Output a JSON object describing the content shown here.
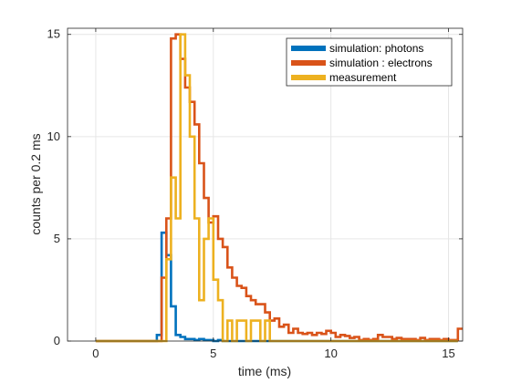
{
  "chart_data": {
    "type": "line",
    "xlabel": "time (ms)",
    "ylabel": "counts per 0.2 ms",
    "xlim": [
      -1.2,
      15.6
    ],
    "ylim": [
      0,
      15.3
    ],
    "xticks": [
      0,
      5,
      10,
      15
    ],
    "yticks": [
      0,
      5,
      10,
      15
    ],
    "grid": true,
    "legend_position": "top-right",
    "bin_width_ms": 0.2,
    "series": [
      {
        "name": "simulation: photons",
        "color": "#0072BD",
        "x": [
          0.0,
          0.2,
          0.4,
          0.6,
          0.8,
          1.0,
          1.2,
          1.4,
          1.6,
          1.8,
          2.0,
          2.2,
          2.4,
          2.6,
          2.8,
          3.0,
          3.2,
          3.4,
          3.6,
          3.8,
          4.0,
          4.2,
          4.4,
          4.6,
          4.8,
          5.0,
          5.2,
          5.4,
          5.6,
          15.2
        ],
        "y": [
          0,
          0,
          0,
          0,
          0,
          0,
          0,
          0,
          0,
          0,
          0,
          0,
          0,
          0.3,
          5.3,
          4.2,
          1.7,
          0.3,
          0.2,
          0.1,
          0.1,
          0.05,
          0.1,
          0.05,
          0.05,
          0,
          0.05,
          0,
          0,
          0
        ]
      },
      {
        "name": "simulation : electrons",
        "color": "#D95319",
        "x": [
          0.0,
          2.4,
          2.6,
          2.8,
          3.0,
          3.2,
          3.4,
          3.6,
          3.8,
          4.0,
          4.2,
          4.4,
          4.6,
          4.8,
          5.0,
          5.2,
          5.4,
          5.6,
          5.8,
          6.0,
          6.2,
          6.4,
          6.6,
          6.8,
          7.0,
          7.2,
          7.4,
          7.6,
          7.8,
          8.0,
          8.2,
          8.4,
          8.6,
          8.8,
          9.0,
          9.2,
          9.4,
          9.6,
          9.8,
          10.0,
          10.2,
          10.4,
          10.6,
          10.8,
          11.0,
          11.2,
          11.4,
          11.6,
          11.8,
          12.0,
          12.2,
          12.4,
          12.6,
          12.8,
          13.0,
          13.2,
          13.4,
          13.6,
          13.8,
          14.0,
          14.2,
          14.4,
          14.6,
          14.8,
          15.0,
          15.2,
          15.4
        ],
        "y": [
          0,
          0,
          0,
          3.1,
          6.0,
          14.8,
          15.0,
          13.8,
          12.4,
          11.7,
          10.6,
          8.7,
          7.0,
          5.8,
          6.1,
          5.0,
          4.6,
          3.6,
          3.1,
          2.7,
          2.6,
          2.2,
          2.0,
          1.8,
          1.8,
          1.4,
          1.0,
          1.1,
          0.7,
          0.8,
          0.4,
          0.6,
          0.4,
          0.35,
          0.4,
          0.3,
          0.4,
          0.35,
          0.5,
          0.4,
          0.2,
          0.3,
          0.25,
          0.15,
          0.2,
          0.05,
          0.1,
          0.05,
          0.1,
          0.3,
          0.2,
          0.2,
          0.1,
          0.15,
          0.1,
          0.1,
          0.1,
          0.05,
          0.15,
          0.05,
          0.1,
          0.1,
          0.05,
          0.1,
          0.05,
          0.05,
          0.6
        ]
      },
      {
        "name": "measurement",
        "color": "#EDB120",
        "x": [
          0.0,
          2.8,
          3.0,
          3.2,
          3.4,
          3.6,
          3.8,
          4.0,
          4.2,
          4.4,
          4.6,
          4.8,
          5.0,
          5.2,
          5.4,
          5.6,
          5.8,
          6.0,
          6.2,
          6.4,
          6.6,
          6.8,
          7.0,
          7.2,
          7.4,
          7.6,
          7.8,
          8.0,
          15.2
        ],
        "y": [
          0,
          0,
          4.0,
          8.0,
          6.0,
          15.0,
          13.0,
          10.0,
          6.0,
          2.0,
          5.0,
          6.0,
          3.0,
          2.0,
          0.0,
          1.0,
          0.0,
          1.0,
          1.0,
          0.0,
          1.0,
          1.0,
          0.0,
          1.0,
          0.0,
          0.0,
          0.0,
          0.0,
          0.0
        ]
      }
    ]
  }
}
